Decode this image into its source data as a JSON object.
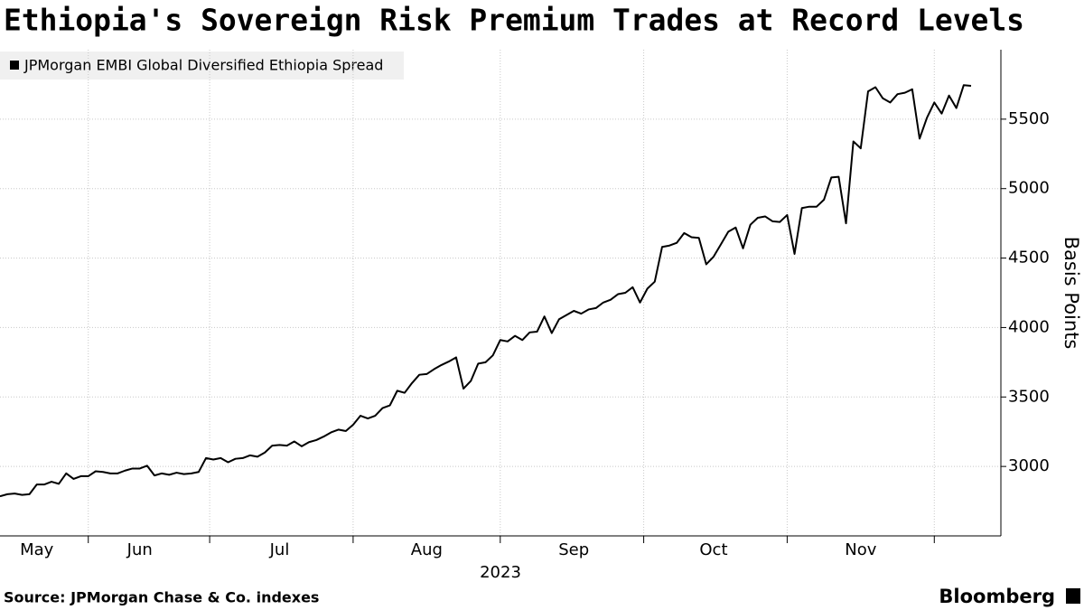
{
  "chart_data": {
    "type": "line",
    "title": "Ethiopia's Sovereign Risk Premium Trades at Record Levels",
    "ylabel": "Basis Points",
    "xlabel": "2023",
    "source": "Source: JPMorgan Chase & Co. indexes",
    "brand": "Bloomberg",
    "categories": [
      null,
      null,
      null,
      null,
      null,
      "May",
      null,
      null,
      null,
      null,
      null,
      null,
      null,
      null,
      null,
      null,
      null,
      null,
      null,
      "Jun",
      null,
      null,
      null,
      null,
      null,
      null,
      null,
      null,
      null,
      null,
      null,
      null,
      null,
      null,
      null,
      null,
      null,
      null,
      "Jul",
      null,
      null,
      null,
      null,
      null,
      null,
      null,
      null,
      null,
      null,
      null,
      null,
      null,
      null,
      null,
      null,
      null,
      null,
      null,
      "Aug",
      null,
      null,
      null,
      null,
      null,
      null,
      null,
      null,
      null,
      null,
      null,
      null,
      null,
      null,
      null,
      null,
      null,
      null,
      null,
      "Sep",
      null,
      null,
      null,
      null,
      null,
      null,
      null,
      null,
      null,
      null,
      null,
      null,
      null,
      null,
      null,
      null,
      null,
      null,
      "Oct",
      null,
      null,
      null,
      null,
      null,
      null,
      null,
      null,
      null,
      null,
      null,
      null,
      null,
      null,
      null,
      null,
      null,
      null,
      null,
      "Nov",
      null,
      null,
      null,
      null,
      null,
      null,
      null,
      null,
      null,
      null,
      null,
      null,
      null,
      null,
      null
    ],
    "series": [
      {
        "name": "JPMorgan EMBI Global Diversified Ethiopia Spread",
        "color": "#000000",
        "values": [
          2785,
          2800,
          2805,
          2795,
          2800,
          2870,
          2870,
          2890,
          2875,
          2950,
          2910,
          2930,
          2930,
          2965,
          2960,
          2950,
          2950,
          2970,
          2985,
          2985,
          3005,
          2935,
          2950,
          2940,
          2955,
          2945,
          2950,
          2960,
          3060,
          3050,
          3060,
          3030,
          3055,
          3060,
          3080,
          3070,
          3100,
          3150,
          3155,
          3150,
          3180,
          3145,
          3175,
          3190,
          3215,
          3245,
          3265,
          3255,
          3300,
          3365,
          3345,
          3365,
          3420,
          3440,
          3545,
          3530,
          3600,
          3660,
          3665,
          3700,
          3730,
          3755,
          3785,
          3560,
          3615,
          3740,
          3750,
          3800,
          3910,
          3900,
          3940,
          3910,
          3965,
          3970,
          4080,
          3960,
          4060,
          4090,
          4120,
          4100,
          4130,
          4140,
          4180,
          4200,
          4240,
          4250,
          4290,
          4180,
          4280,
          4330,
          4580,
          4590,
          4610,
          4680,
          4650,
          4645,
          4455,
          4510,
          4600,
          4690,
          4720,
          4570,
          4740,
          4790,
          4800,
          4765,
          4760,
          4810,
          4530,
          4860,
          4870,
          4870,
          4920,
          5080,
          5085,
          4750,
          5340,
          5290,
          5700,
          5730,
          5650,
          5620,
          5680,
          5690,
          5715,
          5360,
          5510,
          5620,
          5540,
          5670,
          5580,
          5745,
          5740
        ]
      }
    ],
    "ylim": [
      2500,
      6000
    ],
    "yticks": [
      3000,
      3500,
      4000,
      4500,
      5000,
      5500
    ],
    "grid": true
  }
}
